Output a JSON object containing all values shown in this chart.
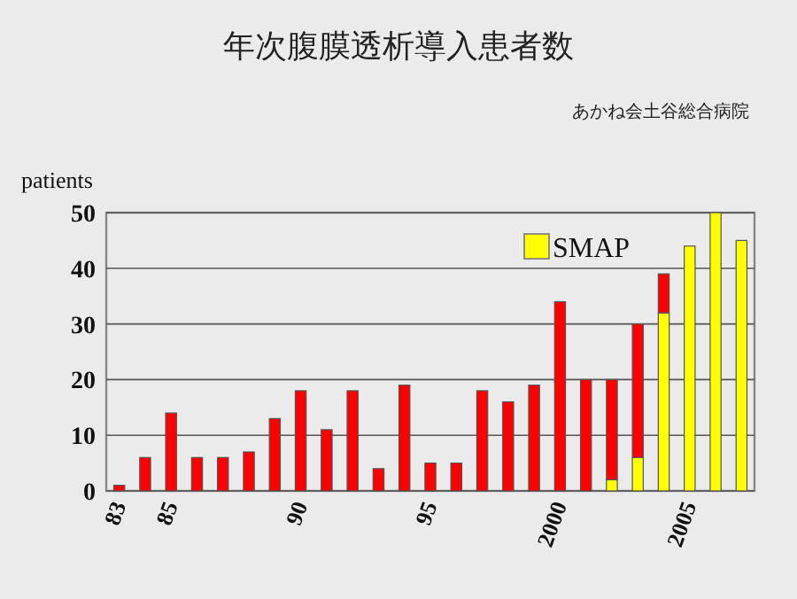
{
  "chart_data": {
    "type": "bar",
    "title": "年次腹膜透析導入患者数",
    "subtitle": "あかね会土谷総合病院",
    "ylabel": "patients",
    "categories": [
      "83",
      null,
      "85",
      null,
      null,
      null,
      null,
      "90",
      null,
      null,
      null,
      null,
      "95",
      null,
      null,
      null,
      null,
      "2000",
      null,
      null,
      null,
      null,
      "2005",
      null,
      null
    ],
    "stacked": true,
    "series": [
      {
        "name": "SMAP",
        "color": "#ffff00",
        "values": [
          null,
          null,
          null,
          null,
          null,
          null,
          null,
          null,
          null,
          null,
          null,
          null,
          null,
          null,
          null,
          null,
          null,
          null,
          null,
          2,
          6,
          32,
          44,
          50,
          45
        ]
      },
      {
        "color": "#ff0000",
        "values": [
          1,
          6,
          14,
          6,
          6,
          7,
          13,
          18,
          11,
          18,
          4,
          19,
          5,
          5,
          18,
          16,
          19,
          34,
          20,
          18,
          24,
          7,
          null,
          null,
          null
        ]
      }
    ],
    "ylim": [
      0,
      50
    ],
    "yticks": [
      0,
      10,
      20,
      30,
      40,
      50
    ],
    "grid": "y",
    "legend": "top right"
  }
}
